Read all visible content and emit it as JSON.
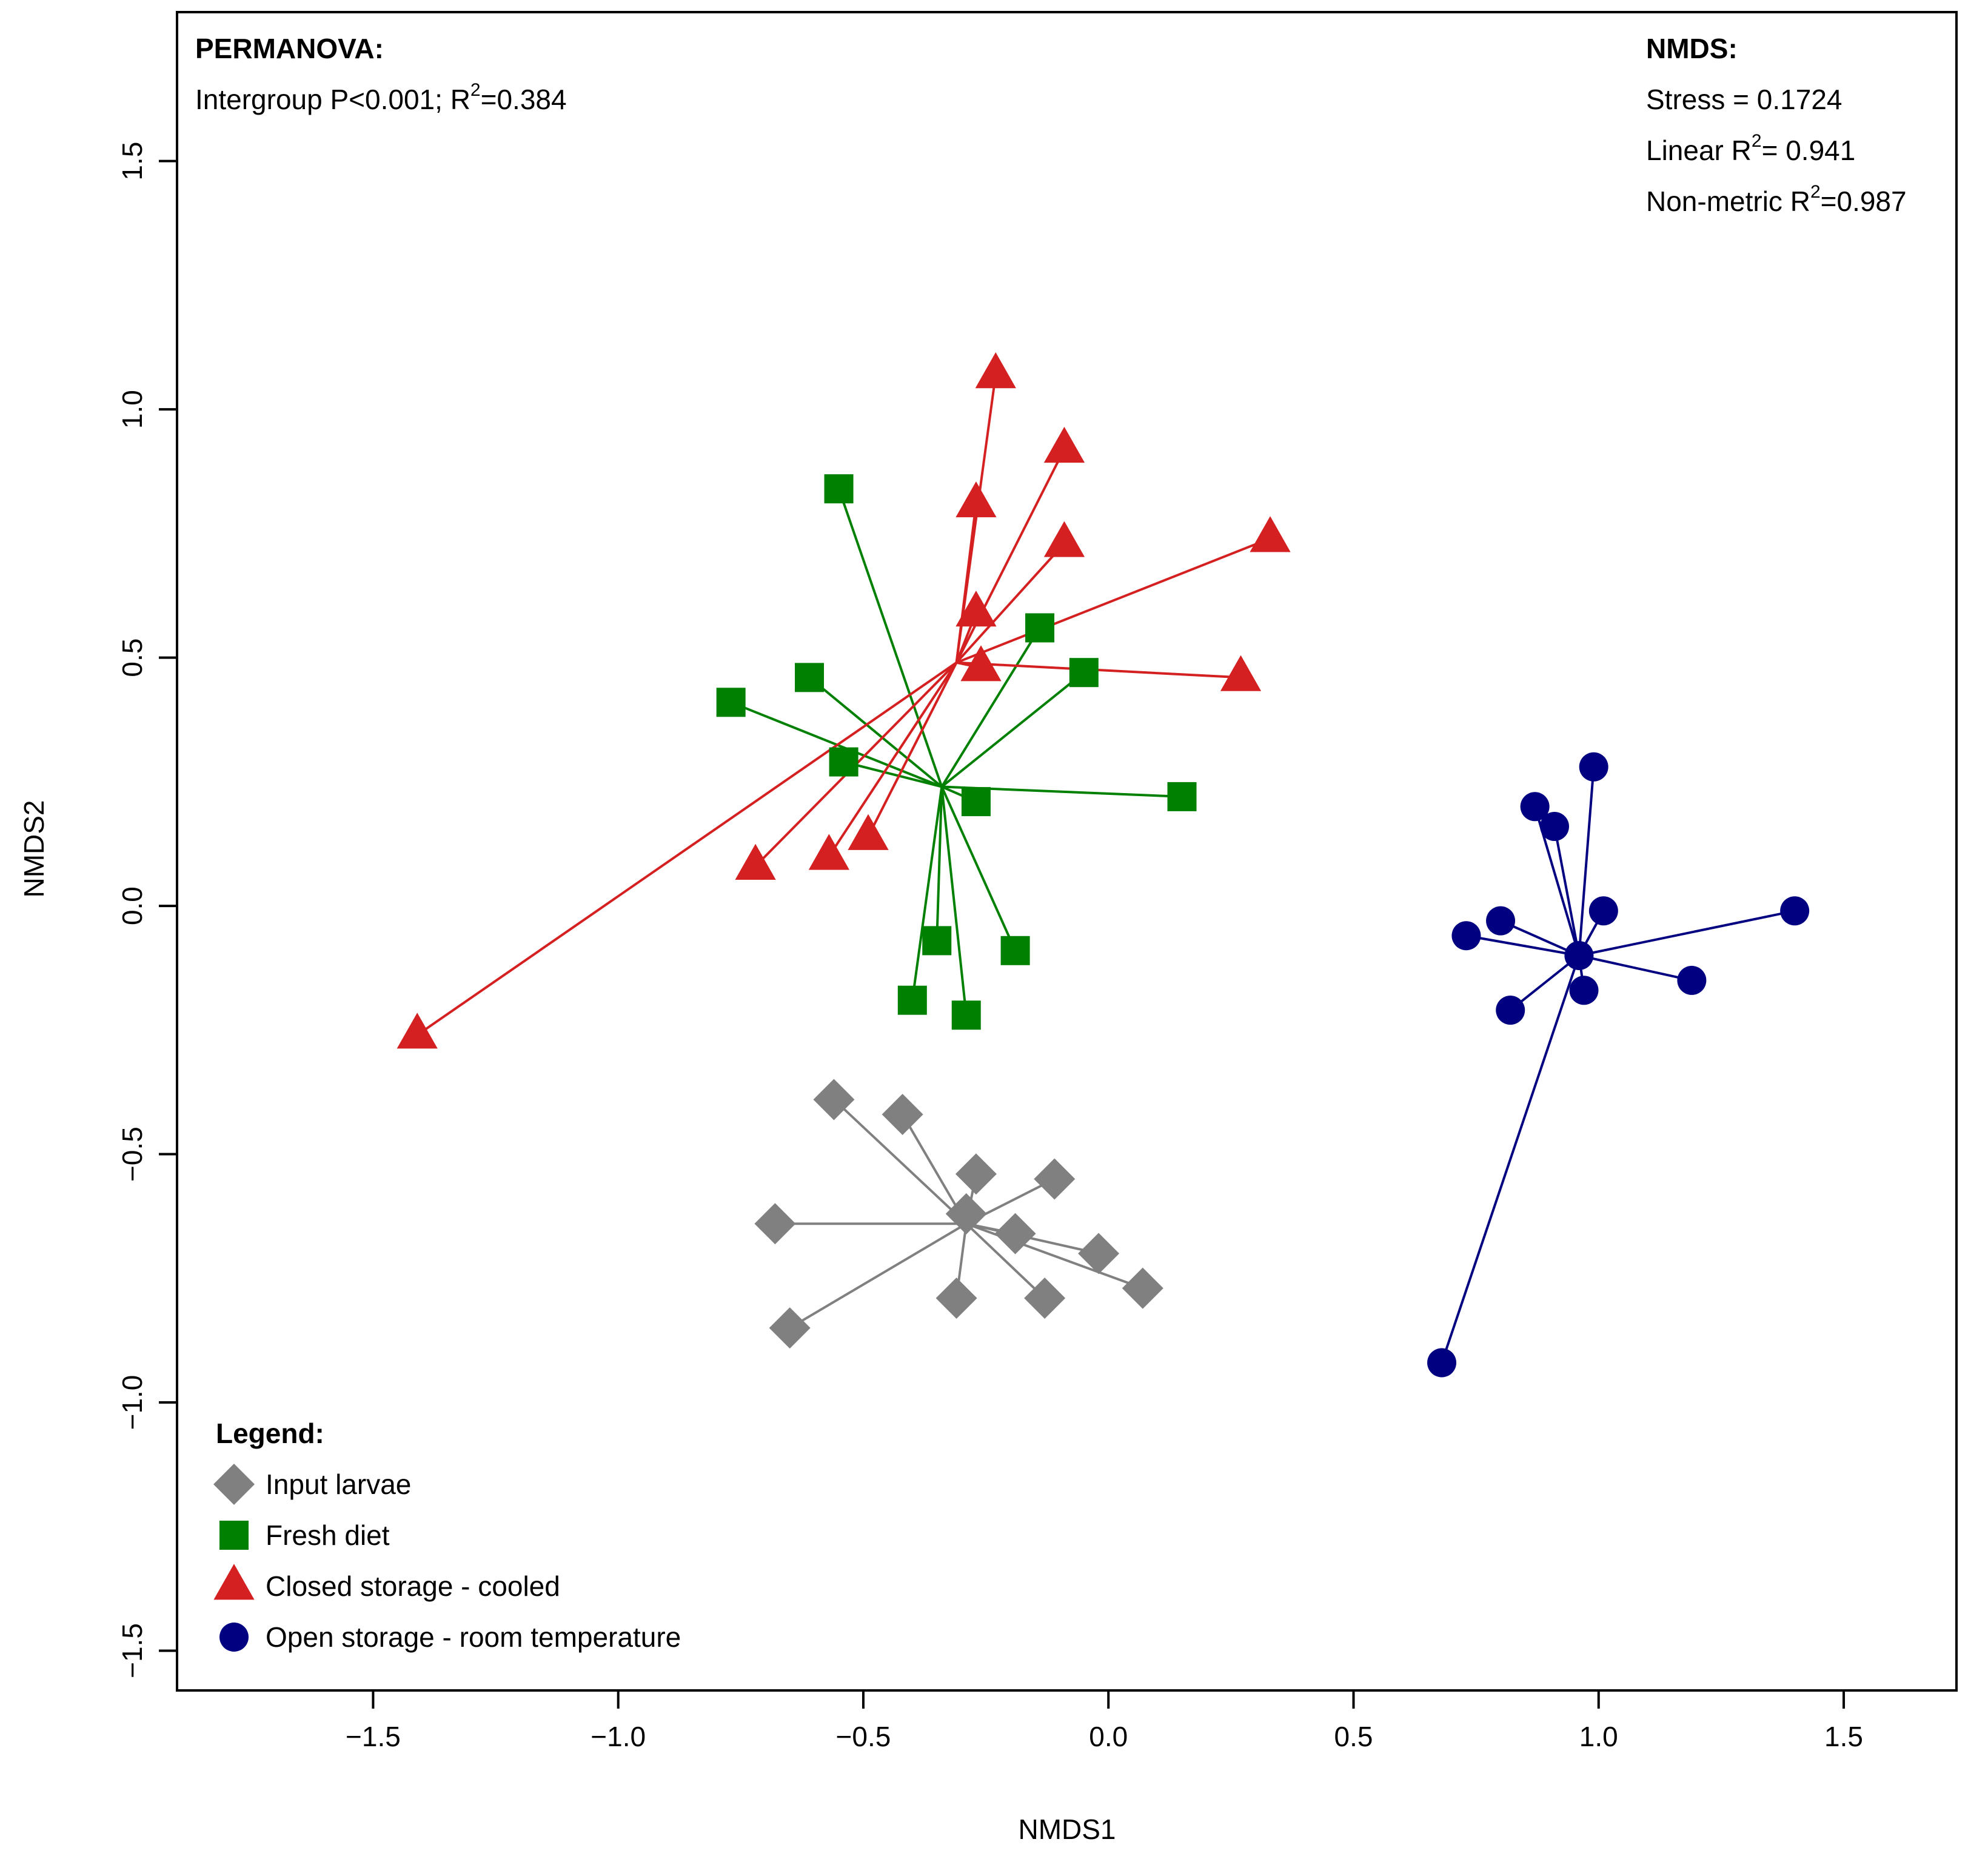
{
  "chart_data": {
    "type": "scatter",
    "title": "",
    "xlabel": "NMDS1",
    "ylabel": "NMDS2",
    "xlim": [
      -1.9,
      1.73
    ],
    "ylim": [
      -1.58,
      1.8
    ],
    "xticks": [
      -1.5,
      -1.0,
      -0.5,
      0.0,
      0.5,
      1.0,
      1.5
    ],
    "yticks": [
      -1.5,
      -1.0,
      -0.5,
      0.0,
      0.5,
      1.0,
      1.5
    ],
    "xtick_labels": [
      "−1.5",
      "−1.0",
      "−0.5",
      "0.0",
      "0.5",
      "1.0",
      "1.5"
    ],
    "ytick_labels": [
      "−1.5",
      "−1.0",
      "−0.5",
      "0.0",
      "0.5",
      "1.0",
      "1.5"
    ],
    "series": [
      {
        "name": "Input larvae",
        "shape": "diamond",
        "color": "#808080",
        "centroid": [
          -0.29,
          -0.64
        ],
        "points": [
          [
            -0.56,
            -0.39
          ],
          [
            -0.42,
            -0.42
          ],
          [
            -0.27,
            -0.54
          ],
          [
            -0.11,
            -0.55
          ],
          [
            -0.68,
            -0.64
          ],
          [
            -0.29,
            -0.62
          ],
          [
            -0.19,
            -0.66
          ],
          [
            -0.02,
            -0.7
          ],
          [
            0.07,
            -0.77
          ],
          [
            -0.31,
            -0.79
          ],
          [
            -0.13,
            -0.79
          ],
          [
            -0.65,
            -0.85
          ]
        ]
      },
      {
        "name": "Fresh diet",
        "shape": "square",
        "color": "#008000",
        "centroid": [
          -0.34,
          0.24
        ],
        "points": [
          [
            -0.55,
            0.84
          ],
          [
            -0.14,
            0.56
          ],
          [
            -0.05,
            0.47
          ],
          [
            -0.61,
            0.46
          ],
          [
            -0.77,
            0.41
          ],
          [
            -0.54,
            0.29
          ],
          [
            -0.27,
            0.21
          ],
          [
            0.15,
            0.22
          ],
          [
            -0.35,
            -0.07
          ],
          [
            -0.19,
            -0.09
          ],
          [
            -0.4,
            -0.19
          ],
          [
            -0.29,
            -0.22
          ]
        ]
      },
      {
        "name": "Closed storage - cooled",
        "shape": "triangle",
        "color": "#d42020",
        "centroid": [
          -0.31,
          0.49
        ],
        "points": [
          [
            -0.23,
            1.07
          ],
          [
            -0.09,
            0.92
          ],
          [
            -0.27,
            0.81
          ],
          [
            -0.09,
            0.73
          ],
          [
            0.33,
            0.74
          ],
          [
            -0.27,
            0.59
          ],
          [
            -0.26,
            0.48
          ],
          [
            0.27,
            0.46
          ],
          [
            -0.49,
            0.14
          ],
          [
            -0.57,
            0.1
          ],
          [
            -0.72,
            0.08
          ],
          [
            -1.41,
            -0.26
          ]
        ]
      },
      {
        "name": "Open storage - room temperature",
        "shape": "circle",
        "color": "#000080",
        "centroid": [
          0.96,
          -0.1
        ],
        "points": [
          [
            0.99,
            0.28
          ],
          [
            0.87,
            0.2
          ],
          [
            0.91,
            0.16
          ],
          [
            1.01,
            -0.01
          ],
          [
            1.4,
            -0.01
          ],
          [
            0.8,
            -0.03
          ],
          [
            0.73,
            -0.06
          ],
          [
            0.96,
            -0.1
          ],
          [
            1.19,
            -0.15
          ],
          [
            0.97,
            -0.17
          ],
          [
            0.82,
            -0.21
          ],
          [
            0.68,
            -0.92
          ]
        ]
      }
    ],
    "annotations": {
      "permanova_title": "PERMANOVA:",
      "permanova_pre": "Intergroup P<0.001; R",
      "permanova_post": "=0.384",
      "nmds_title": "NMDS:",
      "stress": "Stress = 0.1724",
      "linear_pre": "Linear R",
      "linear_post": "= 0.941",
      "nonmetric_pre": "Non-metric R",
      "nonmetric_post": "=0.987",
      "superscript": "2"
    },
    "legend": {
      "title": "Legend:",
      "position": "bottom-left"
    }
  }
}
